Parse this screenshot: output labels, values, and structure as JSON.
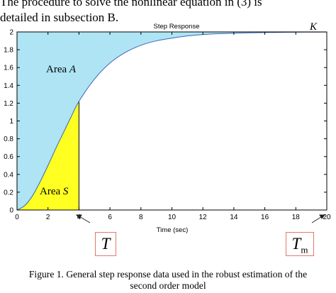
{
  "body_text": {
    "line1": "The procedure to solve the nonlinear equation in (3) is",
    "line2": "detailed in subsection B."
  },
  "figure": {
    "caption_line1": "Figure 1. General step response data used in the robust estimation of the",
    "caption_line2": "second order model",
    "marker_T": "T",
    "marker_Tm_main": "T",
    "marker_Tm_sub": "m",
    "colors": {
      "area_a": "#aee4f4",
      "area_s": "#ffff22",
      "curve": "#3d67b6",
      "marker_border": "#e07a6a",
      "arrow": "#222222"
    }
  },
  "chart_data": {
    "type": "area",
    "title": "Step Response",
    "xlabel": "Time (sec)",
    "ylabel": "",
    "xlim": [
      0,
      20
    ],
    "ylim": [
      0,
      2
    ],
    "xticks": [
      "0",
      "2",
      "4",
      "6",
      "8",
      "10",
      "12",
      "14",
      "16",
      "18",
      "20"
    ],
    "yticks": [
      "0",
      "0.2",
      "0.4",
      "0.6",
      "0.8",
      "1",
      "1.2",
      "1.4",
      "1.6",
      "1.8",
      "2"
    ],
    "x": [
      0,
      0.5,
      1,
      1.5,
      2,
      2.5,
      3,
      3.5,
      4,
      5,
      6,
      7,
      8,
      9,
      10,
      11,
      12,
      13,
      14,
      15,
      16,
      17,
      18,
      19,
      20
    ],
    "values": [
      0,
      0.05,
      0.16,
      0.32,
      0.5,
      0.69,
      0.87,
      1.05,
      1.22,
      1.47,
      1.65,
      1.77,
      1.85,
      1.9,
      1.93,
      1.955,
      1.97,
      1.98,
      1.985,
      1.99,
      1.993,
      1.995,
      1.997,
      1.998,
      1.999
    ],
    "final_value": 2,
    "final_value_label": "K",
    "area_labels": {
      "area_a_main": "Area ",
      "area_a_symbol": "A",
      "area_s_main": "Area ",
      "area_s_symbol": "S"
    },
    "shaded_until_x": 4,
    "grid": false
  }
}
